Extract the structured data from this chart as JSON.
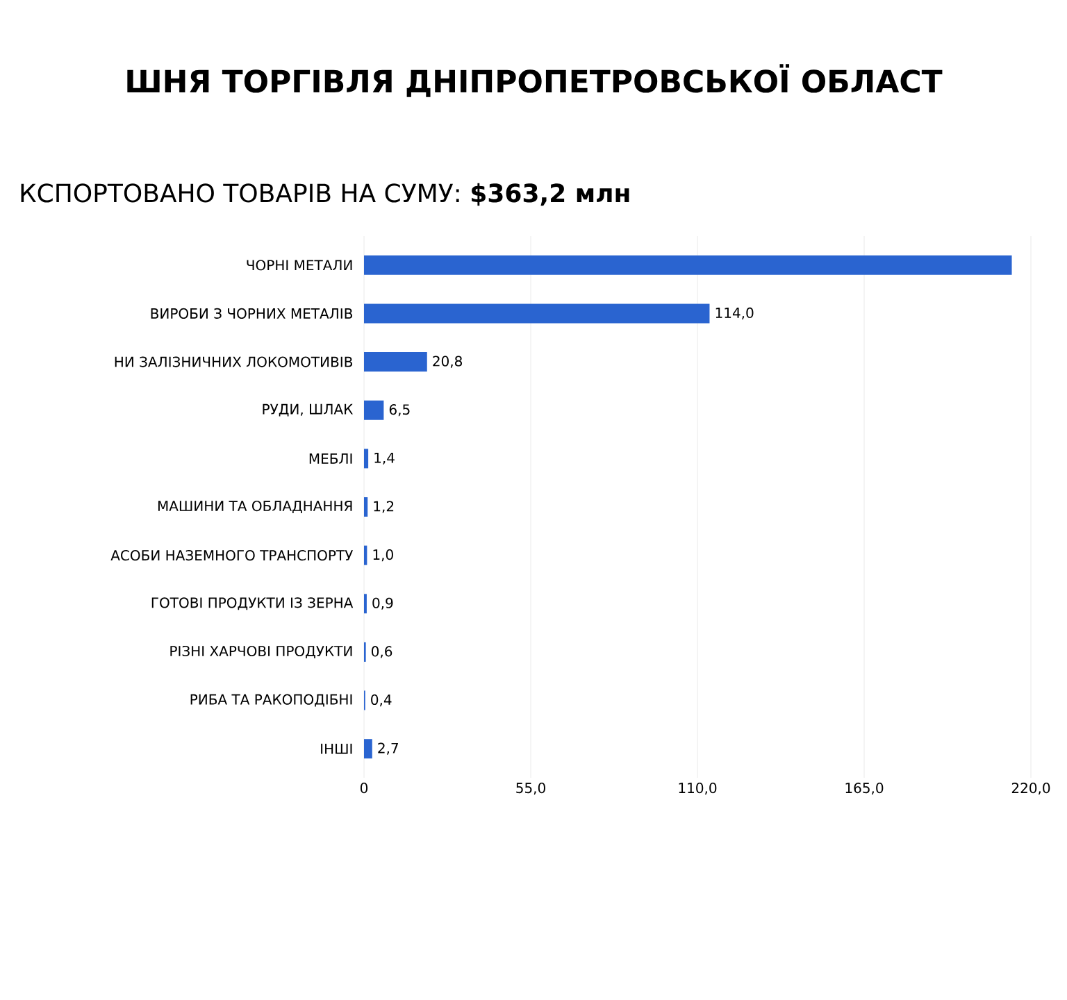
{
  "chart_data": {
    "type": "bar",
    "orientation": "horizontal",
    "title": "ШНЯ ТОРГІВЛЯ ДНІПРОПЕТРОВСЬКОЇ ОБЛАСТ",
    "subtitle": "КСПОРТОВАНО ТОВАРІВ НА СУМУ:  **$363,2 млн**",
    "categories": [
      "ЧОРНІ МЕТАЛИ",
      "ВИРОБИ З ЧОРНИХ МЕТАЛІВ",
      "НИ ЗАЛІЗНИЧНИХ ЛОКОМОТИВІВ",
      "РУДИ, ШЛАК",
      "МЕБЛІ",
      "МАШИНИ ТА ОБЛАДНАННЯ",
      "АСОБИ НАЗЕМНОГО ТРАНСПОРТУ",
      "ГОТОВІ ПРОДУКТИ ІЗ ЗЕРНА",
      "РІЗНІ ХАРЧОВІ ПРОДУКТИ",
      "РИБА ТА РАКОПОДІБНІ",
      "ІНШІ"
    ],
    "values": [
      213.7,
      114.0,
      20.8,
      6.5,
      1.4,
      1.2,
      1.0,
      0.9,
      0.6,
      0.4,
      2.7
    ],
    "value_labels": [
      null,
      "114,0",
      "20,8",
      "6,5",
      "1,4",
      "1,2",
      "1,0",
      "0,9",
      "0,6",
      "0,4",
      "2,7"
    ],
    "color": "#2a64d0",
    "xlim": [
      0,
      220
    ],
    "xticks": [
      0,
      {
        "value": 55,
        "label": "55,0"
      },
      {
        "value": 110,
        "label": "110,0"
      },
      {
        "value": 165,
        "label": "165,0"
      },
      {
        "value": 220,
        "label": "220,0"
      }
    ],
    "grid": "x"
  }
}
